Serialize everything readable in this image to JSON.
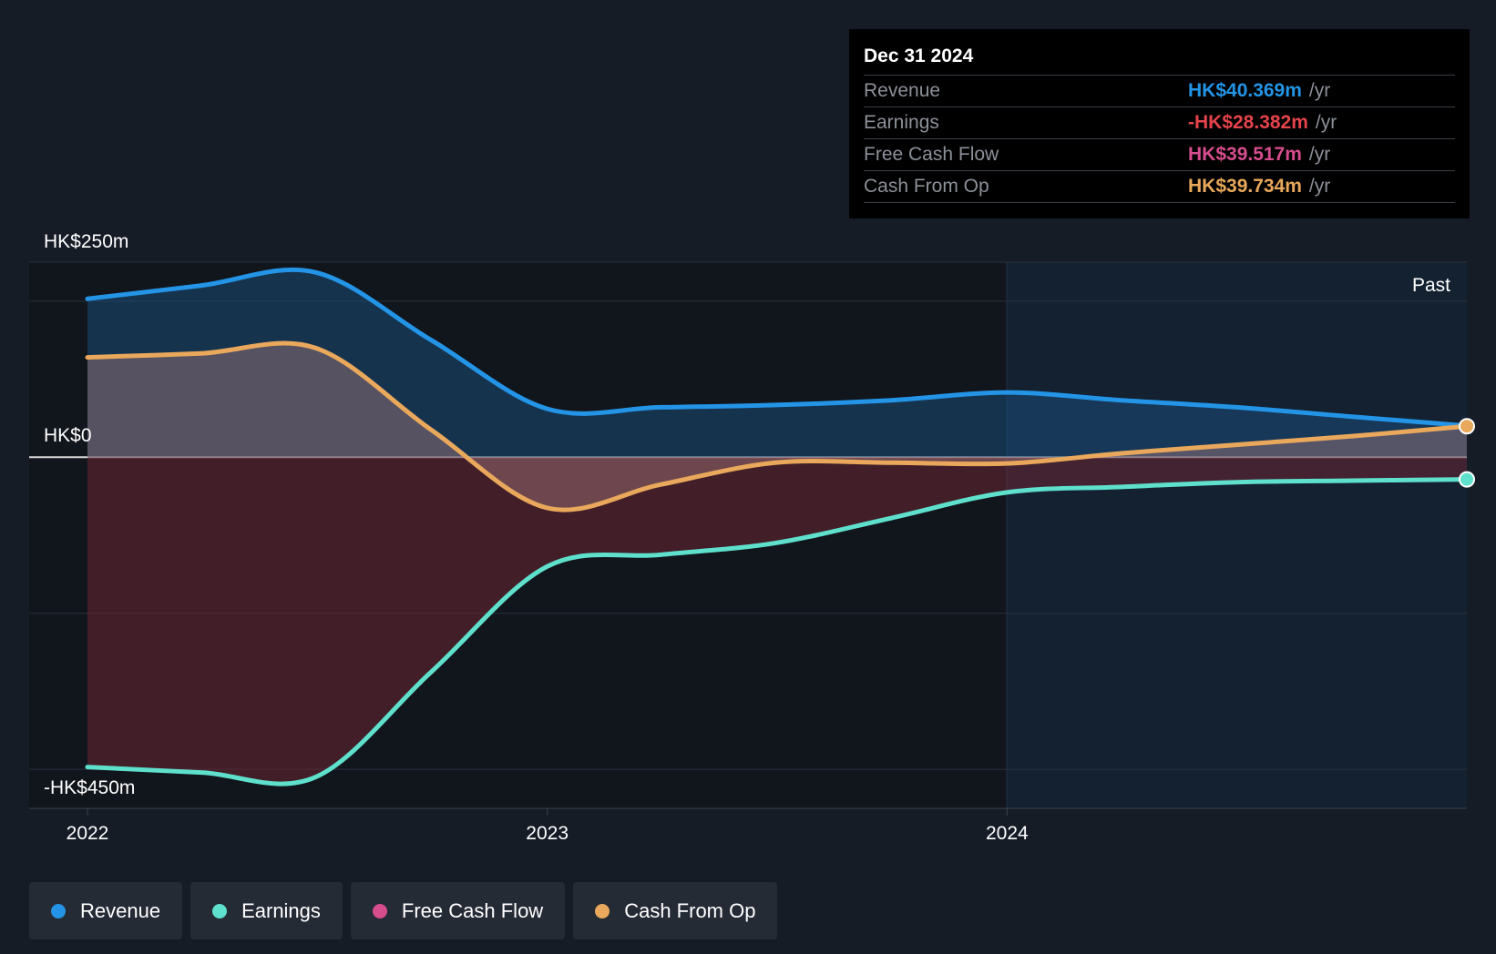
{
  "chart_data": {
    "type": "area",
    "title": "",
    "xlabel": "",
    "ylabel": "",
    "x_ticks": [
      "2022",
      "2023",
      "2024"
    ],
    "y_labels": [
      "HK$250m",
      "HK$0",
      "-HK$450m"
    ],
    "ylim": [
      -450,
      250
    ],
    "region_label": "Past",
    "series": [
      {
        "name": "Revenue",
        "color": "#2394e6",
        "x": [
          "2022-01-01",
          "2022-04-01",
          "2022-07-01",
          "2022-10-01",
          "2023-01-01",
          "2023-04-01",
          "2023-07-01",
          "2023-10-01",
          "2024-01-01",
          "2024-04-01",
          "2024-07-01",
          "2024-10-01",
          "2024-12-31"
        ],
        "values": [
          203,
          220,
          237,
          150,
          62,
          64,
          67,
          73,
          83,
          73,
          64,
          52,
          40.369
        ]
      },
      {
        "name": "Earnings",
        "color": "#5ee0cc",
        "x": [
          "2022-01-01",
          "2022-04-01",
          "2022-07-01",
          "2022-10-01",
          "2023-01-01",
          "2023-04-01",
          "2023-07-01",
          "2023-10-01",
          "2024-01-01",
          "2024-04-01",
          "2024-07-01",
          "2024-10-01",
          "2024-12-31"
        ],
        "values": [
          -397,
          -404,
          -410,
          -275,
          -140,
          -125,
          -110,
          -78,
          -45,
          -38,
          -32,
          -30,
          -28.382
        ]
      },
      {
        "name": "Free Cash Flow",
        "color": "#d64d8e",
        "x": [
          "2024-12-31"
        ],
        "values": [
          39.517
        ]
      },
      {
        "name": "Cash From Op",
        "color": "#e9a85b",
        "x": [
          "2022-01-01",
          "2022-04-01",
          "2022-07-01",
          "2022-10-01",
          "2023-01-01",
          "2023-04-01",
          "2023-07-01",
          "2023-10-01",
          "2024-01-01",
          "2024-04-01",
          "2024-07-01",
          "2024-10-01",
          "2024-12-31"
        ],
        "values": [
          128,
          133,
          140,
          35,
          -65,
          -35,
          -7,
          -7,
          -8,
          5,
          16,
          27,
          39.734
        ]
      }
    ]
  },
  "tooltip": {
    "date": "Dec 31 2024",
    "rows": [
      {
        "label": "Revenue",
        "value": "HK$40.369m",
        "unit": "/yr",
        "color": "#2394e6"
      },
      {
        "label": "Earnings",
        "value": "-HK$28.382m",
        "unit": "/yr",
        "color": "#e6434c"
      },
      {
        "label": "Free Cash Flow",
        "value": "HK$39.517m",
        "unit": "/yr",
        "color": "#d64d8e"
      },
      {
        "label": "Cash From Op",
        "value": "HK$39.734m",
        "unit": "/yr",
        "color": "#e9a85b"
      }
    ]
  },
  "legend": [
    {
      "label": "Revenue",
      "color": "#2394e6"
    },
    {
      "label": "Earnings",
      "color": "#5ee0cc"
    },
    {
      "label": "Free Cash Flow",
      "color": "#d64d8e"
    },
    {
      "label": "Cash From Op",
      "color": "#e9a85b"
    }
  ]
}
